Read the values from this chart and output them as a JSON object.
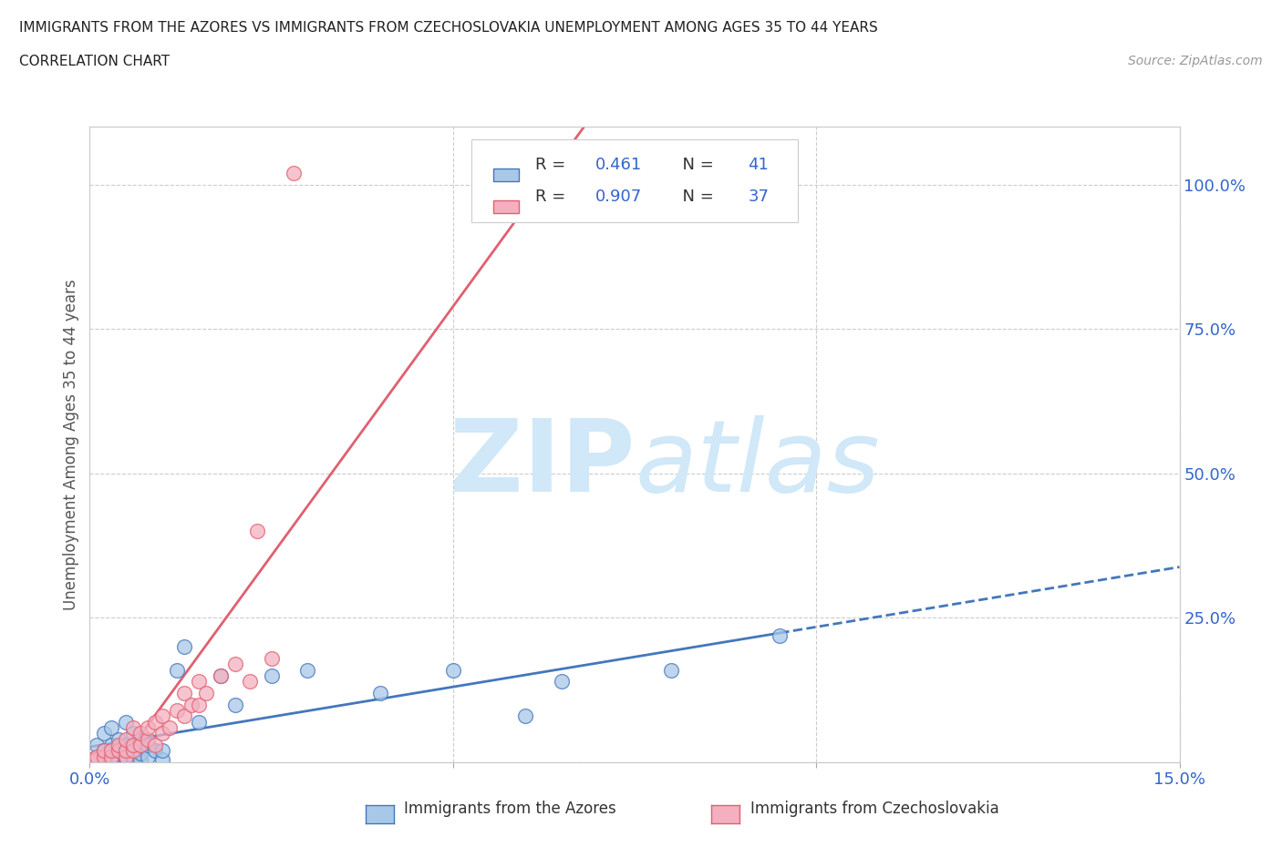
{
  "title_line1": "IMMIGRANTS FROM THE AZORES VS IMMIGRANTS FROM CZECHOSLOVAKIA UNEMPLOYMENT AMONG AGES 35 TO 44 YEARS",
  "title_line2": "CORRELATION CHART",
  "source": "Source: ZipAtlas.com",
  "ylabel": "Unemployment Among Ages 35 to 44 years",
  "xlim": [
    0.0,
    0.15
  ],
  "ylim": [
    0.0,
    1.1
  ],
  "ytick_positions": [
    0.0,
    0.25,
    0.5,
    0.75,
    1.0
  ],
  "ytick_labels": [
    "",
    "25.0%",
    "50.0%",
    "75.0%",
    "100.0%"
  ],
  "azores_R": 0.461,
  "azores_N": 41,
  "czech_R": 0.907,
  "czech_N": 37,
  "azores_color": "#a8c8e8",
  "czech_color": "#f4b0c0",
  "azores_line_color": "#4477bb",
  "czech_line_color": "#e06070",
  "background_color": "#ffffff",
  "grid_color": "#cccccc",
  "watermark_color": "#d0e8f8",
  "azores_scatter_x": [
    0.0,
    0.001,
    0.001,
    0.002,
    0.002,
    0.002,
    0.003,
    0.003,
    0.003,
    0.003,
    0.004,
    0.004,
    0.004,
    0.005,
    0.005,
    0.005,
    0.005,
    0.006,
    0.006,
    0.006,
    0.006,
    0.007,
    0.007,
    0.008,
    0.008,
    0.009,
    0.01,
    0.01,
    0.012,
    0.013,
    0.015,
    0.018,
    0.02,
    0.025,
    0.03,
    0.04,
    0.05,
    0.06,
    0.065,
    0.08,
    0.095
  ],
  "azores_scatter_y": [
    0.005,
    0.01,
    0.03,
    0.005,
    0.02,
    0.05,
    0.005,
    0.01,
    0.03,
    0.06,
    0.005,
    0.02,
    0.04,
    0.005,
    0.01,
    0.03,
    0.07,
    0.005,
    0.01,
    0.02,
    0.05,
    0.005,
    0.015,
    0.01,
    0.03,
    0.02,
    0.005,
    0.02,
    0.16,
    0.2,
    0.07,
    0.15,
    0.1,
    0.15,
    0.16,
    0.12,
    0.16,
    0.08,
    0.14,
    0.16,
    0.22
  ],
  "czech_scatter_x": [
    0.0,
    0.001,
    0.001,
    0.002,
    0.002,
    0.003,
    0.003,
    0.004,
    0.004,
    0.005,
    0.005,
    0.005,
    0.006,
    0.006,
    0.006,
    0.007,
    0.007,
    0.008,
    0.008,
    0.009,
    0.009,
    0.01,
    0.01,
    0.011,
    0.012,
    0.013,
    0.013,
    0.014,
    0.015,
    0.015,
    0.016,
    0.018,
    0.02,
    0.022,
    0.023,
    0.025,
    0.028
  ],
  "czech_scatter_y": [
    0.005,
    0.005,
    0.01,
    0.01,
    0.02,
    0.01,
    0.02,
    0.02,
    0.03,
    0.01,
    0.02,
    0.04,
    0.02,
    0.03,
    0.06,
    0.03,
    0.05,
    0.04,
    0.06,
    0.03,
    0.07,
    0.05,
    0.08,
    0.06,
    0.09,
    0.08,
    0.12,
    0.1,
    0.1,
    0.14,
    0.12,
    0.15,
    0.17,
    0.14,
    0.4,
    0.18,
    1.02
  ]
}
